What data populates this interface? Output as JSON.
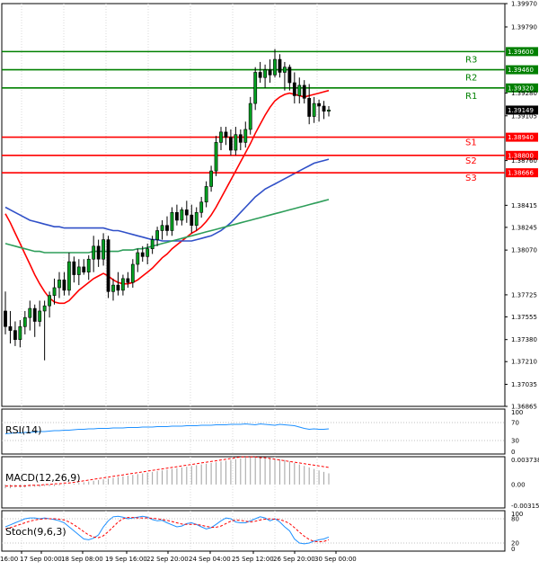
{
  "chart_data": {
    "type": "candlestick",
    "instrument_levels": {
      "resistance": [
        {
          "name": "R1",
          "value": 1.3932
        },
        {
          "name": "R2",
          "value": 1.3946
        },
        {
          "name": "R3",
          "value": 1.396
        }
      ],
      "support": [
        {
          "name": "S1",
          "value": 1.3894
        },
        {
          "name": "S2",
          "value": 1.388
        },
        {
          "name": "S3",
          "value": 1.38666
        }
      ],
      "resistance_labels": [
        "1.39320",
        "1.39460",
        "1.39600"
      ],
      "support_labels": [
        "1.38940",
        "1.38800",
        "1.38666"
      ],
      "colors": {
        "resistance": "#008000",
        "support": "#ff0000"
      }
    },
    "current_price": 1.39149,
    "current_price_label": "1.39149",
    "price_axis": {
      "ylim": [
        1.36865,
        1.3997
      ],
      "tick_labels": [
        "1.39970",
        "1.39790",
        "1.39280",
        "1.39105",
        "1.38760",
        "1.38415",
        "1.38245",
        "1.38070",
        "1.37725",
        "1.37555",
        "1.37380",
        "1.37210",
        "1.37035",
        "1.36865"
      ]
    },
    "time_axis": {
      "labels": [
        "16:00",
        "17 Sep 00:00",
        "18 Sep 08:00",
        "19 Sep 16:00",
        "22 Sep 20:00",
        "24 Sep 04:00",
        "25 Sep 12:00",
        "26 Sep 20:00",
        "30 Sep 00:00"
      ]
    },
    "candles": [
      {
        "o": 1.376,
        "h": 1.3775,
        "l": 1.3742,
        "c": 1.3748
      },
      {
        "o": 1.3748,
        "h": 1.376,
        "l": 1.3735,
        "c": 1.3745
      },
      {
        "o": 1.3745,
        "h": 1.3752,
        "l": 1.3733,
        "c": 1.3738
      },
      {
        "o": 1.3738,
        "h": 1.3753,
        "l": 1.3732,
        "c": 1.3748
      },
      {
        "o": 1.3748,
        "h": 1.376,
        "l": 1.3742,
        "c": 1.3755
      },
      {
        "o": 1.3755,
        "h": 1.3768,
        "l": 1.3745,
        "c": 1.3762
      },
      {
        "o": 1.3762,
        "h": 1.3765,
        "l": 1.374,
        "c": 1.3752
      },
      {
        "o": 1.3752,
        "h": 1.3768,
        "l": 1.3748,
        "c": 1.376
      },
      {
        "o": 1.376,
        "h": 1.3768,
        "l": 1.3722,
        "c": 1.3764
      },
      {
        "o": 1.3764,
        "h": 1.3775,
        "l": 1.3755,
        "c": 1.3772
      },
      {
        "o": 1.3772,
        "h": 1.3785,
        "l": 1.3765,
        "c": 1.3778
      },
      {
        "o": 1.3778,
        "h": 1.379,
        "l": 1.377,
        "c": 1.3784
      },
      {
        "o": 1.3784,
        "h": 1.379,
        "l": 1.3772,
        "c": 1.3776
      },
      {
        "o": 1.3776,
        "h": 1.3805,
        "l": 1.3772,
        "c": 1.3798
      },
      {
        "o": 1.3798,
        "h": 1.3802,
        "l": 1.3782,
        "c": 1.3788
      },
      {
        "o": 1.3788,
        "h": 1.38,
        "l": 1.378,
        "c": 1.3794
      },
      {
        "o": 1.3794,
        "h": 1.38,
        "l": 1.3788,
        "c": 1.379
      },
      {
        "o": 1.379,
        "h": 1.3803,
        "l": 1.3784,
        "c": 1.38
      },
      {
        "o": 1.38,
        "h": 1.3818,
        "l": 1.379,
        "c": 1.381
      },
      {
        "o": 1.381,
        "h": 1.3815,
        "l": 1.3794,
        "c": 1.38
      },
      {
        "o": 1.38,
        "h": 1.382,
        "l": 1.3795,
        "c": 1.3815
      },
      {
        "o": 1.3815,
        "h": 1.3818,
        "l": 1.377,
        "c": 1.3775
      },
      {
        "o": 1.3775,
        "h": 1.3785,
        "l": 1.3768,
        "c": 1.378
      },
      {
        "o": 1.378,
        "h": 1.379,
        "l": 1.3772,
        "c": 1.3776
      },
      {
        "o": 1.3776,
        "h": 1.3788,
        "l": 1.3772,
        "c": 1.3785
      },
      {
        "o": 1.3785,
        "h": 1.379,
        "l": 1.3778,
        "c": 1.3782
      },
      {
        "o": 1.3782,
        "h": 1.38,
        "l": 1.3778,
        "c": 1.3796
      },
      {
        "o": 1.3796,
        "h": 1.3808,
        "l": 1.379,
        "c": 1.3805
      },
      {
        "o": 1.3805,
        "h": 1.381,
        "l": 1.3798,
        "c": 1.3802
      },
      {
        "o": 1.3802,
        "h": 1.3812,
        "l": 1.3796,
        "c": 1.3808
      },
      {
        "o": 1.3808,
        "h": 1.3818,
        "l": 1.3804,
        "c": 1.3815
      },
      {
        "o": 1.3815,
        "h": 1.3825,
        "l": 1.381,
        "c": 1.3822
      },
      {
        "o": 1.3822,
        "h": 1.383,
        "l": 1.3815,
        "c": 1.3826
      },
      {
        "o": 1.3826,
        "h": 1.3833,
        "l": 1.3818,
        "c": 1.3822
      },
      {
        "o": 1.3822,
        "h": 1.384,
        "l": 1.3818,
        "c": 1.3836
      },
      {
        "o": 1.3836,
        "h": 1.3842,
        "l": 1.3826,
        "c": 1.383
      },
      {
        "o": 1.383,
        "h": 1.384,
        "l": 1.3826,
        "c": 1.3838
      },
      {
        "o": 1.3838,
        "h": 1.3845,
        "l": 1.3828,
        "c": 1.3834
      },
      {
        "o": 1.3834,
        "h": 1.3842,
        "l": 1.382,
        "c": 1.3826
      },
      {
        "o": 1.3826,
        "h": 1.384,
        "l": 1.3822,
        "c": 1.3836
      },
      {
        "o": 1.3836,
        "h": 1.3848,
        "l": 1.3832,
        "c": 1.3844
      },
      {
        "o": 1.3844,
        "h": 1.386,
        "l": 1.384,
        "c": 1.3856
      },
      {
        "o": 1.3856,
        "h": 1.3872,
        "l": 1.3852,
        "c": 1.3868
      },
      {
        "o": 1.3868,
        "h": 1.3895,
        "l": 1.3864,
        "c": 1.389
      },
      {
        "o": 1.389,
        "h": 1.3902,
        "l": 1.3884,
        "c": 1.3898
      },
      {
        "o": 1.3898,
        "h": 1.3902,
        "l": 1.3888,
        "c": 1.3894
      },
      {
        "o": 1.3894,
        "h": 1.39,
        "l": 1.388,
        "c": 1.3884
      },
      {
        "o": 1.3884,
        "h": 1.3902,
        "l": 1.388,
        "c": 1.3896
      },
      {
        "o": 1.3896,
        "h": 1.39,
        "l": 1.3884,
        "c": 1.389
      },
      {
        "o": 1.389,
        "h": 1.3906,
        "l": 1.3886,
        "c": 1.39
      },
      {
        "o": 1.39,
        "h": 1.3925,
        "l": 1.3896,
        "c": 1.392
      },
      {
        "o": 1.392,
        "h": 1.3948,
        "l": 1.3915,
        "c": 1.3944
      },
      {
        "o": 1.3944,
        "h": 1.3952,
        "l": 1.3936,
        "c": 1.394
      },
      {
        "o": 1.394,
        "h": 1.395,
        "l": 1.3932,
        "c": 1.3946
      },
      {
        "o": 1.3946,
        "h": 1.3954,
        "l": 1.3936,
        "c": 1.3942
      },
      {
        "o": 1.3942,
        "h": 1.3962,
        "l": 1.394,
        "c": 1.3954
      },
      {
        "o": 1.3954,
        "h": 1.3958,
        "l": 1.394,
        "c": 1.3944
      },
      {
        "o": 1.3944,
        "h": 1.3952,
        "l": 1.393,
        "c": 1.3948
      },
      {
        "o": 1.3948,
        "h": 1.395,
        "l": 1.393,
        "c": 1.3936
      },
      {
        "o": 1.3936,
        "h": 1.3944,
        "l": 1.392,
        "c": 1.3926
      },
      {
        "o": 1.3926,
        "h": 1.394,
        "l": 1.392,
        "c": 1.3934
      },
      {
        "o": 1.3934,
        "h": 1.3938,
        "l": 1.392,
        "c": 1.3924
      },
      {
        "o": 1.3924,
        "h": 1.3935,
        "l": 1.3904,
        "c": 1.391
      },
      {
        "o": 1.391,
        "h": 1.3925,
        "l": 1.3905,
        "c": 1.392
      },
      {
        "o": 1.392,
        "h": 1.3923,
        "l": 1.3906,
        "c": 1.3918
      },
      {
        "o": 1.3918,
        "h": 1.3922,
        "l": 1.3908,
        "c": 1.3914
      },
      {
        "o": 1.3914,
        "h": 1.3918,
        "l": 1.391,
        "c": 1.3915
      }
    ],
    "moving_averages": [
      {
        "color": "#ff0000",
        "values": [
          1.3835,
          1.3828,
          1.382,
          1.3812,
          1.3804,
          1.3796,
          1.3788,
          1.3781,
          1.3775,
          1.377,
          1.3767,
          1.3766,
          1.3766,
          1.3768,
          1.3772,
          1.3776,
          1.3779,
          1.3782,
          1.3785,
          1.3787,
          1.3789,
          1.3787,
          1.3784,
          1.3782,
          1.3781,
          1.3781,
          1.3782,
          1.3784,
          1.3787,
          1.379,
          1.3793,
          1.3797,
          1.3801,
          1.3804,
          1.3808,
          1.3811,
          1.3814,
          1.3817,
          1.382,
          1.3822,
          1.3825,
          1.3829,
          1.3834,
          1.384,
          1.3847,
          1.3854,
          1.3861,
          1.3868,
          1.3875,
          1.3882,
          1.3889,
          1.3897,
          1.3904,
          1.3911,
          1.3917,
          1.3922,
          1.3925,
          1.3927,
          1.3928,
          1.3927,
          1.3926,
          1.3925,
          1.3926,
          1.3927,
          1.3928,
          1.3929,
          1.393
        ]
      },
      {
        "color": "#3050c8",
        "values": [
          1.384,
          1.3838,
          1.3836,
          1.3834,
          1.3832,
          1.383,
          1.3829,
          1.3828,
          1.3827,
          1.3826,
          1.3825,
          1.3825,
          1.3824,
          1.3824,
          1.3824,
          1.3824,
          1.3824,
          1.3824,
          1.3824,
          1.3824,
          1.3824,
          1.3823,
          1.3822,
          1.3822,
          1.3821,
          1.382,
          1.3819,
          1.3818,
          1.3817,
          1.3816,
          1.3815,
          1.3815,
          1.3814,
          1.3814,
          1.3814,
          1.3814,
          1.3814,
          1.3814,
          1.3814,
          1.3815,
          1.3816,
          1.3817,
          1.3818,
          1.382,
          1.3822,
          1.3825,
          1.3828,
          1.3832,
          1.3836,
          1.384,
          1.3844,
          1.3848,
          1.3851,
          1.3854,
          1.3856,
          1.3858,
          1.386,
          1.3862,
          1.3864,
          1.3866,
          1.3868,
          1.387,
          1.3872,
          1.3874,
          1.3875,
          1.3876,
          1.3877
        ]
      },
      {
        "color": "#2e9e5a",
        "values": [
          1.3812,
          1.3811,
          1.381,
          1.3809,
          1.3808,
          1.3807,
          1.3806,
          1.3806,
          1.3805,
          1.3805,
          1.3805,
          1.3805,
          1.3805,
          1.3805,
          1.3805,
          1.3805,
          1.3805,
          1.3805,
          1.3806,
          1.3806,
          1.3806,
          1.3806,
          1.3806,
          1.3806,
          1.3807,
          1.3807,
          1.3807,
          1.3808,
          1.3808,
          1.3809,
          1.381,
          1.3811,
          1.3812,
          1.3813,
          1.3814,
          1.3815,
          1.3816,
          1.3817,
          1.3818,
          1.3819,
          1.382,
          1.3821,
          1.3822,
          1.3823,
          1.3824,
          1.3825,
          1.3826,
          1.3827,
          1.3828,
          1.3829,
          1.383,
          1.3831,
          1.3832,
          1.3833,
          1.3834,
          1.3835,
          1.3836,
          1.3837,
          1.3838,
          1.3839,
          1.384,
          1.3841,
          1.3842,
          1.3843,
          1.3844,
          1.3845,
          1.3846
        ]
      }
    ],
    "indicators": {
      "rsi": {
        "label": "RSI(14)",
        "ylim": [
          0,
          100
        ],
        "tick_labels": [
          "100",
          "70",
          "30",
          "0"
        ],
        "values": [
          45,
          46,
          47,
          47,
          48,
          48,
          49,
          50,
          50,
          51,
          52,
          52,
          53,
          53,
          54,
          55,
          55,
          56,
          56,
          57,
          57,
          57,
          58,
          58,
          58,
          59,
          59,
          59,
          60,
          60,
          60,
          61,
          61,
          61,
          62,
          62,
          62,
          63,
          63,
          63,
          64,
          64,
          64,
          65,
          65,
          65,
          66,
          66,
          66,
          67,
          66,
          65,
          67,
          66,
          65,
          64,
          66,
          65,
          64,
          63,
          60,
          57,
          55,
          56,
          55,
          55,
          56
        ],
        "color": "#1e90ff"
      },
      "macd": {
        "label": "MACD(12,26,9)",
        "ylim": [
          -0.00315,
          0.003738
        ],
        "tick_labels": [
          "0.003738",
          "0.00",
          "-0.00315"
        ],
        "histogram": [
          -0.0005,
          -0.0005,
          -0.0004,
          -0.0004,
          -0.0004,
          -0.0003,
          -0.0003,
          -0.0003,
          -0.0002,
          -0.0002,
          -0.0002,
          -0.0001,
          -0.0001,
          0.0,
          0.0001,
          0.0002,
          0.0003,
          0.0004,
          0.0005,
          0.0006,
          0.0007,
          0.0008,
          0.0009,
          0.001,
          0.0011,
          0.0012,
          0.0013,
          0.0014,
          0.0015,
          0.0016,
          0.0017,
          0.0018,
          0.0019,
          0.002,
          0.0021,
          0.0022,
          0.0023,
          0.0024,
          0.0025,
          0.0026,
          0.0027,
          0.0028,
          0.0029,
          0.003,
          0.0031,
          0.0032,
          0.0033,
          0.0034,
          0.0035,
          0.0036,
          0.0037,
          0.0037,
          0.0037,
          0.0037,
          0.0036,
          0.0035,
          0.0034,
          0.0033,
          0.0031,
          0.0029,
          0.0027,
          0.0025,
          0.0023,
          0.0021,
          0.0019,
          0.0017,
          0.0015
        ],
        "signal": [
          -0.0002,
          -0.0002,
          -0.0002,
          -0.0002,
          -0.0002,
          -0.0001,
          -0.0001,
          -0.0001,
          0.0,
          0.0,
          0.0001,
          0.0001,
          0.0002,
          0.0002,
          0.0003,
          0.0004,
          0.0005,
          0.0006,
          0.0007,
          0.0008,
          0.0009,
          0.001,
          0.0011,
          0.0012,
          0.0013,
          0.0014,
          0.0015,
          0.0016,
          0.0017,
          0.0018,
          0.0019,
          0.002,
          0.0021,
          0.0022,
          0.0023,
          0.0024,
          0.0025,
          0.0026,
          0.0027,
          0.0028,
          0.0029,
          0.003,
          0.0031,
          0.0032,
          0.0033,
          0.0034,
          0.0035,
          0.0036,
          0.0037,
          0.0037,
          0.0037,
          0.0037,
          0.0036,
          0.0036,
          0.0035,
          0.0034,
          0.0033,
          0.0032,
          0.0031,
          0.003,
          0.0029,
          0.0028,
          0.0027,
          0.0026,
          0.0025,
          0.0024,
          0.0023
        ],
        "colors": {
          "histogram": "#a0a0a0",
          "signal": "#ff0000"
        }
      },
      "stoch": {
        "label": "Stoch(9,6,3)",
        "ylim": [
          0,
          100
        ],
        "tick_labels": [
          "100",
          "80",
          "20",
          "0"
        ],
        "main": [
          60,
          65,
          70,
          75,
          80,
          82,
          82,
          80,
          82,
          80,
          78,
          75,
          70,
          60,
          50,
          40,
          30,
          28,
          32,
          40,
          60,
          75,
          85,
          86,
          84,
          80,
          82,
          84,
          86,
          84,
          78,
          75,
          76,
          70,
          65,
          60,
          62,
          68,
          70,
          66,
          60,
          55,
          58,
          66,
          75,
          82,
          80,
          72,
          70,
          70,
          75,
          80,
          85,
          82,
          75,
          80,
          72,
          60,
          50,
          30,
          20,
          18,
          20,
          25,
          28,
          30,
          35
        ],
        "signal": [
          55,
          58,
          62,
          66,
          70,
          74,
          77,
          79,
          80,
          80,
          80,
          79,
          77,
          72,
          65,
          57,
          48,
          40,
          35,
          33,
          38,
          48,
          60,
          72,
          80,
          83,
          83,
          82,
          82,
          82,
          81,
          80,
          78,
          76,
          73,
          70,
          67,
          66,
          66,
          66,
          64,
          61,
          59,
          59,
          62,
          68,
          74,
          77,
          76,
          74,
          72,
          74,
          77,
          79,
          80,
          79,
          78,
          74,
          68,
          58,
          47,
          37,
          29,
          24,
          23,
          24,
          28
        ],
        "colors": {
          "main": "#1e90ff",
          "signal": "#ff0000"
        }
      }
    }
  }
}
